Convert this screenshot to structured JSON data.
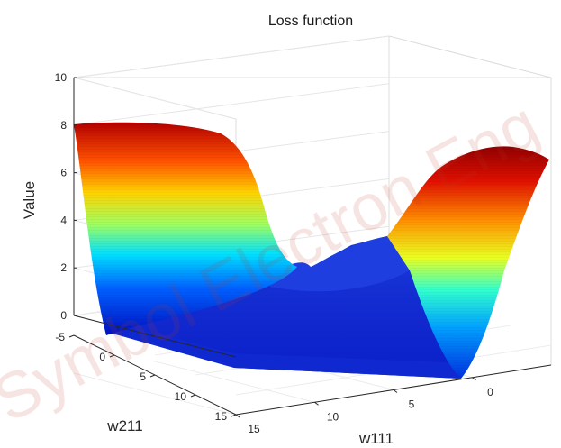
{
  "chart_data": {
    "type": "surface",
    "title": "Loss function",
    "xlabel": "w111",
    "ylabel": "w211",
    "zlabel": "Value",
    "xlim": [
      -5,
      15
    ],
    "ylim": [
      -5,
      15
    ],
    "zlim": [
      0,
      10
    ],
    "x_ticks": [
      15,
      10,
      5,
      0
    ],
    "y_ticks": [
      -5,
      0,
      5,
      10,
      15
    ],
    "z_ticks": [
      0,
      2,
      4,
      6,
      8,
      10
    ],
    "grid": true,
    "colormap": "jet",
    "surface_samples": [
      {
        "w111": 15,
        "w211": -5,
        "value": 8.1
      },
      {
        "w111": 5,
        "w211": -5,
        "value": 8.0
      },
      {
        "w111": 2,
        "w211": -5,
        "value": 2.2
      },
      {
        "w111": 15,
        "w211": 15,
        "value": 0.3
      },
      {
        "w111": 0,
        "w211": 15,
        "value": 0.4
      },
      {
        "w111": -5,
        "w211": 15,
        "value": 7.0
      },
      {
        "w111": -5,
        "w211": 5,
        "value": 5.0
      },
      {
        "w111": 5,
        "w211": 5,
        "value": 0.6
      }
    ]
  },
  "watermark": "Symbol Electron Eng",
  "colors": {
    "axis": "#262626",
    "grid": "#e3e3e3",
    "low": "#00008f",
    "high": "#800000"
  }
}
